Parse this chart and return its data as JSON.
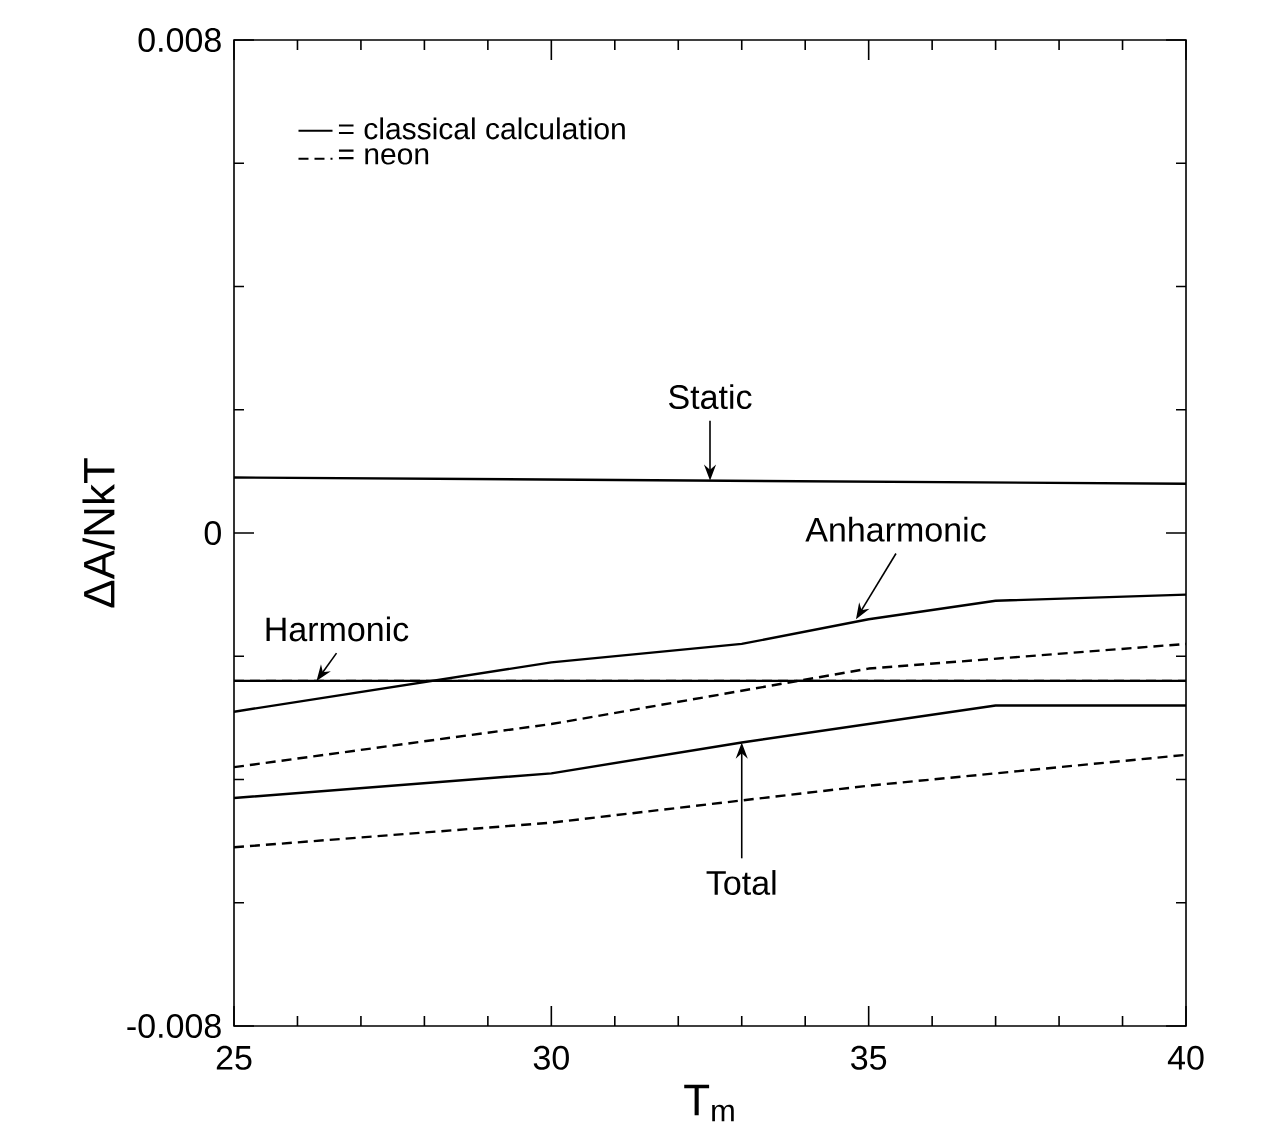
{
  "chart_data": {
    "type": "line",
    "xlabel": "T$_{m}$",
    "ylabel": "ΔA/NkT",
    "xlim": [
      25,
      40
    ],
    "xticks": [
      25,
      30,
      35,
      40
    ],
    "ylim": [
      -0.008,
      0.008
    ],
    "yticks": [
      -0.008,
      0,
      0.008
    ],
    "legend": "top left",
    "grid": false,
    "marker": "none",
    "series": [
      {
        "name": "= classical calculation",
        "color": "#000000",
        "line_style": "solid",
        "x": [
          25,
          40
        ],
        "values": [
          -0.0024,
          -0.0024
        ]
      },
      {
        "name": "= neon",
        "color": "#000000",
        "line_style": "dashed",
        "x": [
          25,
          40
        ],
        "values": [
          -0.0024,
          -0.0024
        ]
      },
      {
        "color": "#000000",
        "line_style": "solid",
        "x": [
          25,
          40
        ],
        "values": [
          0.0009,
          0.0008
        ]
      },
      {
        "color": "#000000",
        "line_style": "solid",
        "x": [
          25,
          30,
          33,
          35,
          37,
          40
        ],
        "values": [
          -0.0029,
          -0.0021,
          -0.0018,
          -0.0014,
          -0.0011,
          -0.001
        ]
      },
      {
        "color": "#000000",
        "line_style": "dashed",
        "x": [
          25,
          30,
          35,
          40
        ],
        "values": [
          -0.0038,
          -0.0031,
          -0.0022,
          -0.0018
        ]
      },
      {
        "color": "#000000",
        "line_style": "solid",
        "x": [
          25,
          30,
          33,
          37,
          40
        ],
        "values": [
          -0.0043,
          -0.0039,
          -0.0034,
          -0.0028,
          -0.0028
        ]
      },
      {
        "color": "#000000",
        "line_style": "dashed",
        "x": [
          25,
          30,
          35,
          40
        ],
        "values": [
          -0.0051,
          -0.0047,
          -0.0041,
          -0.0036
        ]
      }
    ],
    "annotations": [
      {
        "text": "Static",
        "x": 32.5,
        "y": 0.00085
      },
      {
        "text": "Harmonic",
        "x": 26.3,
        "y": -0.0024
      },
      {
        "text": "Anharmonic",
        "x": 34.8,
        "y": -0.0014
      },
      {
        "text": "Total",
        "x": 33,
        "y": -0.0034
      }
    ]
  }
}
